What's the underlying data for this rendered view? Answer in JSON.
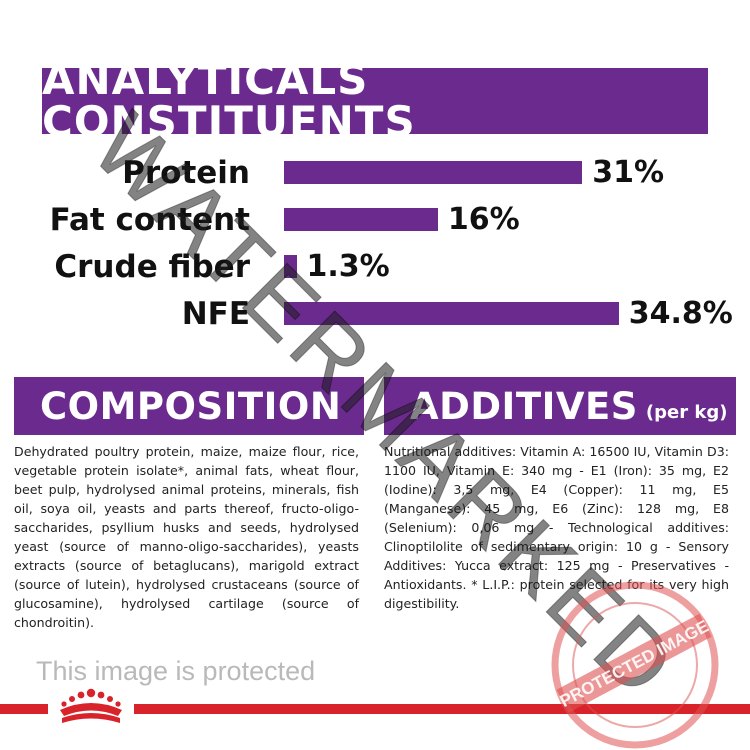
{
  "analyticals": {
    "title": "ANALYTICALS CONSTITUENTS",
    "nutrients": [
      {
        "label": "Protein",
        "value_label": "31%",
        "value": 31
      },
      {
        "label": "Fat content",
        "value_label": "16%",
        "value": 16
      },
      {
        "label": "Crude fiber",
        "value_label": "1.3%",
        "value": 1.3
      },
      {
        "label": "NFE",
        "value_label": "34.8%",
        "value": 34.8
      }
    ]
  },
  "composition": {
    "title": "COMPOSITION",
    "text": "Dehydrated poultry protein, maize, maize flour, rice, vegetable protein isolate*, animal fats, wheat flour, beet pulp, hydrolysed animal proteins, minerals, fish oil, soya oil, yeasts and parts thereof, fructo-oligo-saccharides, psyllium husks and seeds, hydrolysed yeast (source of manno-oligo-saccharides), yeasts extracts (source of betaglucans), marigold extract (source of lutein), hydrolysed crustaceans (source of glucosamine), hydrolysed cartilage (source of chondroitin)."
  },
  "additives": {
    "title": "ADDITIVES",
    "subtitle": "(per kg)",
    "text": "Nutritional additives: Vitamin A: 16500 IU, Vitamin D3: 1100 IU, Vitamin E: 340 mg - E1 (Iron): 35 mg, E2 (Iodine): 3,5 mg, E4 (Copper): 11 mg, E5 (Manganese): 45 mg, E6 (Zinc): 128 mg, E8 (Selenium): 0,06 mg - Technological additives: Clinoptilolite of sedimentary origin: 10 g - Sensory Additives: Yucca extract: 125 mg - Preservatives - Antioxidants. * L.I.P.: protein selected for its very high digestibility."
  },
  "footer": {
    "protected_text": "This image is protected"
  },
  "watermark": {
    "text": "WATERMARKED",
    "stamp_text": "PROTECTED IMAGE"
  },
  "colors": {
    "brand_purple": "#6a2a8e",
    "brand_red": "#d8232a"
  }
}
